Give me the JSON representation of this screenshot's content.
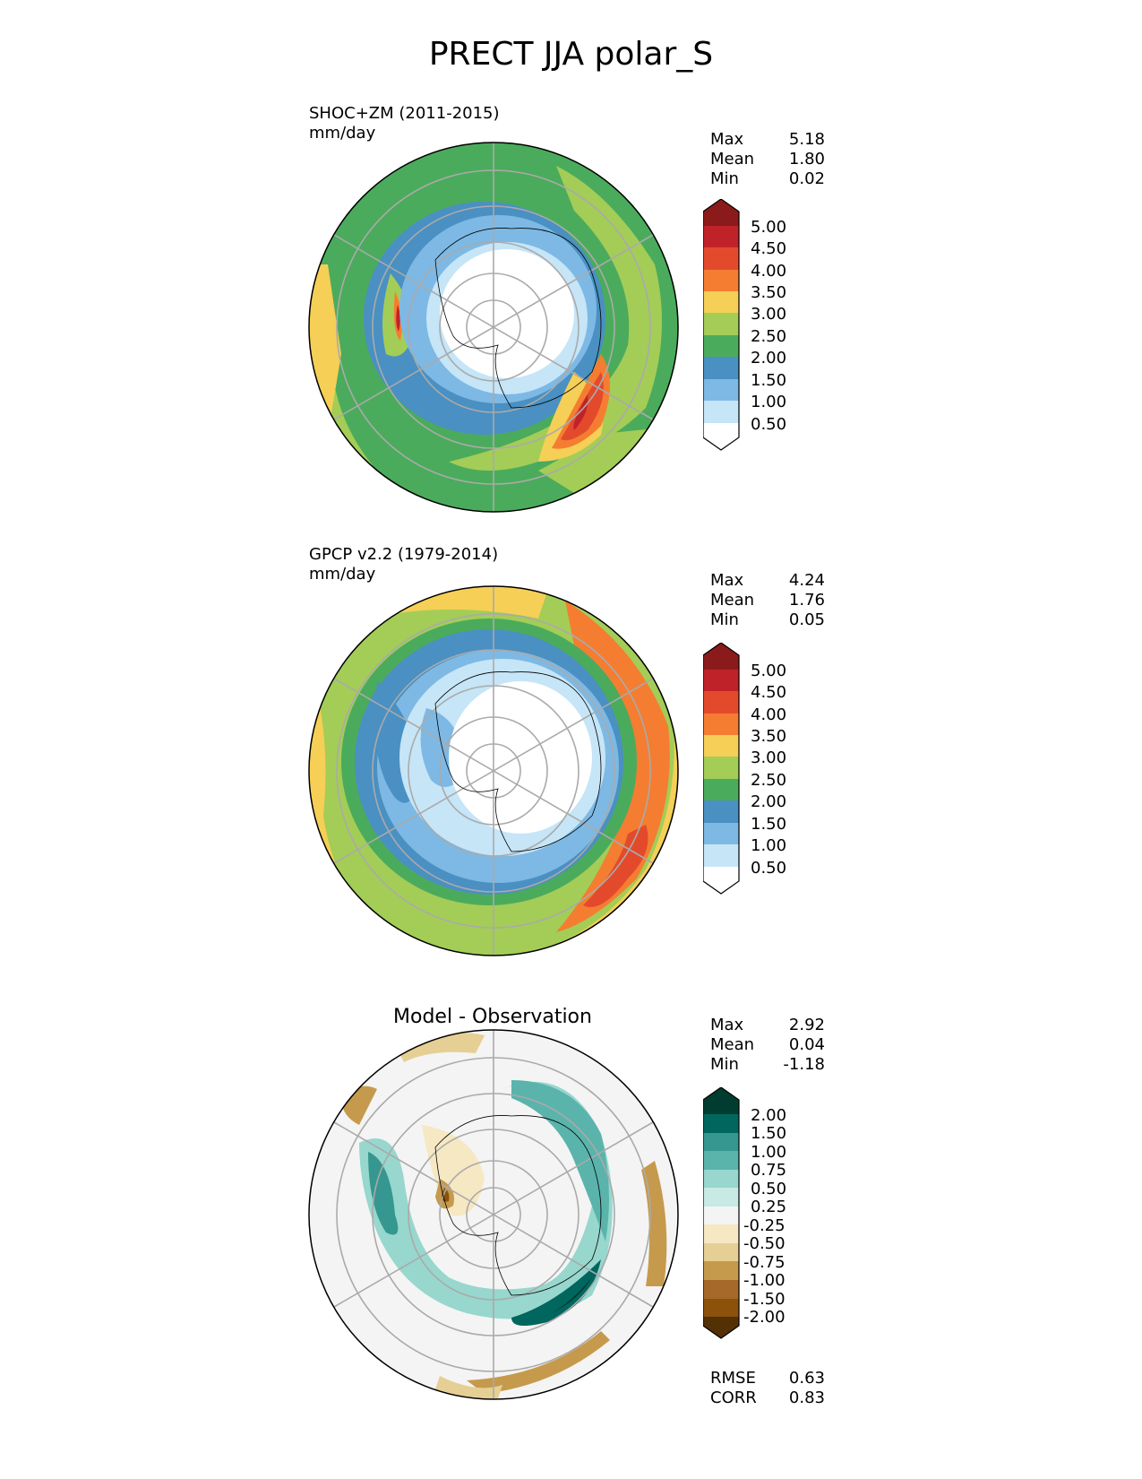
{
  "title": "PRECT JJA polar_S",
  "panels": [
    {
      "id": "test",
      "title": "SHOC+ZM (2011-2015)",
      "units": "mm/day",
      "stats": [
        {
          "label": "Max",
          "value": "5.18"
        },
        {
          "label": "Mean",
          "value": "1.80"
        },
        {
          "label": "Min",
          "value": "0.02"
        }
      ]
    },
    {
      "id": "reference",
      "title": "GPCP v2.2 (1979-2014)",
      "units": "mm/day",
      "stats": [
        {
          "label": "Max",
          "value": "4.24"
        },
        {
          "label": "Mean",
          "value": "1.76"
        },
        {
          "label": "Min",
          "value": "0.05"
        }
      ]
    },
    {
      "id": "difference",
      "title": "Model - Observation",
      "stats": [
        {
          "label": "Max",
          "value": "2.92"
        },
        {
          "label": "Mean",
          "value": "0.04"
        },
        {
          "label": "Min",
          "value": "-1.18"
        }
      ],
      "metrics": [
        {
          "label": "RMSE",
          "value": "0.63"
        },
        {
          "label": "CORR",
          "value": "0.83"
        }
      ]
    }
  ],
  "colorbars": {
    "precip": {
      "levels": [
        "5.00",
        "4.50",
        "4.00",
        "3.50",
        "3.00",
        "2.50",
        "2.00",
        "1.50",
        "1.00",
        "0.50"
      ],
      "colors": [
        "#8b1a1a",
        "#c0222a",
        "#e34a2c",
        "#f47d31",
        "#f5cf56",
        "#a3cd57",
        "#4bab5c",
        "#4a90c2",
        "#7db9e4",
        "#c6e5f7",
        "#ffffff"
      ]
    },
    "diff": {
      "levels": [
        "2.00",
        "1.50",
        "1.00",
        "0.75",
        "0.50",
        "0.25",
        "-0.25",
        "-0.50",
        "-0.75",
        "-1.00",
        "-1.50",
        "-2.00"
      ],
      "colors": [
        "#003c30",
        "#01665e",
        "#35978f",
        "#5ab4ac",
        "#97d7cd",
        "#c7eae5",
        "#f4f4f4",
        "#f6e8c3",
        "#e6cf94",
        "#c69a4c",
        "#a6692a",
        "#8c510a",
        "#543005"
      ]
    }
  }
}
